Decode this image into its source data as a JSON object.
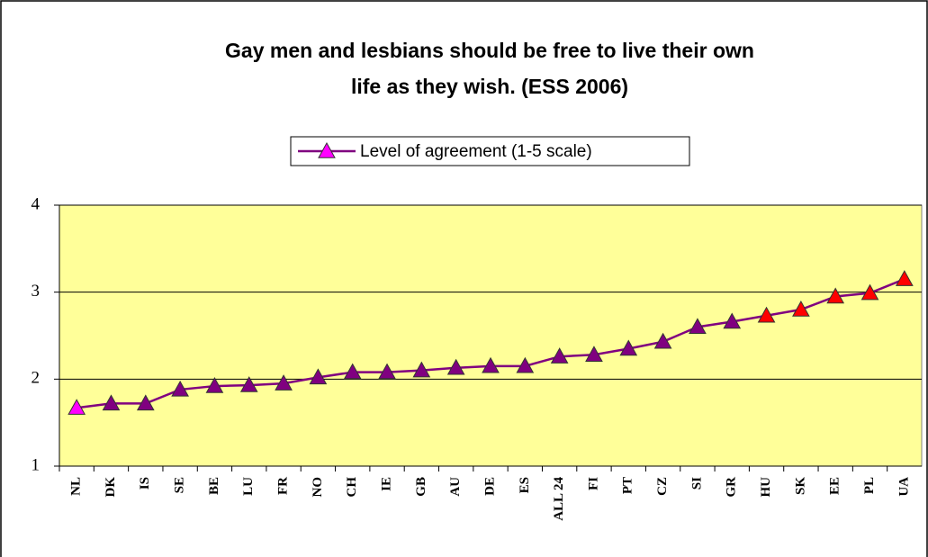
{
  "chart_data": {
    "type": "line",
    "title": [
      "Gay men and lesbians should be free to live their own",
      "life as they wish. (ESS 2006)"
    ],
    "categories": [
      "NL",
      "DK",
      "IS",
      "SE",
      "BE",
      "LU",
      "FR",
      "NO",
      "CH",
      "IE",
      "GB",
      "AU",
      "DE",
      "ES",
      "ALL 24",
      "FI",
      "PT",
      "CZ",
      "SI",
      "GR",
      "HU",
      "SK",
      "EE",
      "PL",
      "UA"
    ],
    "series": [
      {
        "name": "Level of agreement (1-5 scale)",
        "color": "#800080",
        "values": [
          1.67,
          1.72,
          1.72,
          1.88,
          1.92,
          1.93,
          1.95,
          2.02,
          2.08,
          2.08,
          2.1,
          2.13,
          2.15,
          2.15,
          2.26,
          2.28,
          2.35,
          2.43,
          2.6,
          2.66,
          2.73,
          2.8,
          2.95,
          2.99,
          3.15
        ],
        "marker_colors": [
          "#ff00ff",
          "#800080",
          "#800080",
          "#800080",
          "#800080",
          "#800080",
          "#800080",
          "#800080",
          "#800080",
          "#800080",
          "#800080",
          "#800080",
          "#800080",
          "#800080",
          "#800080",
          "#800080",
          "#800080",
          "#800080",
          "#800080",
          "#800080",
          "#ff0000",
          "#ff0000",
          "#ff0000",
          "#ff0000",
          "#ff0000"
        ]
      }
    ],
    "ylim": [
      1,
      4
    ],
    "yticks": [
      1,
      2,
      3,
      4
    ],
    "grid": true,
    "legend": "top",
    "plot_background": "#ffff99"
  }
}
